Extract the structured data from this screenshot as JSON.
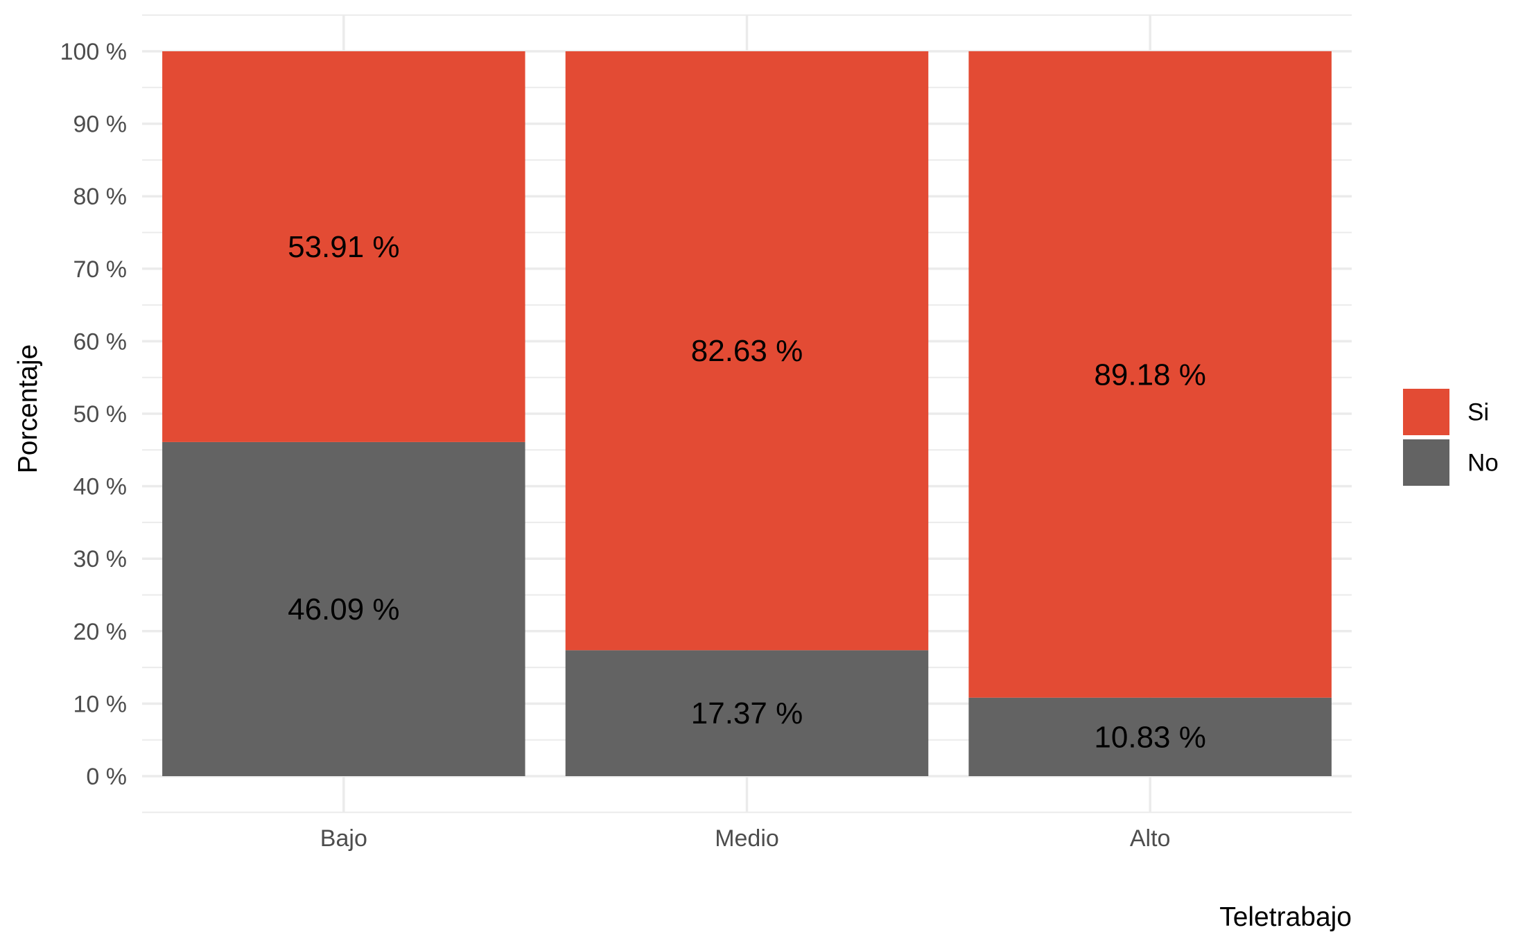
{
  "chart_data": {
    "type": "bar",
    "stacked": true,
    "title": "",
    "xlabel": "Teletrabajo",
    "ylabel": "Porcentaje",
    "categories": [
      "Bajo",
      "Medio",
      "Alto"
    ],
    "series": [
      {
        "name": "No",
        "color": "#636363",
        "values": [
          46.09,
          17.37,
          10.83
        ],
        "labels": [
          "46.09 %",
          "17.37 %",
          "10.83 %"
        ]
      },
      {
        "name": "Si",
        "color": "#E34B34",
        "values": [
          53.91,
          82.63,
          89.18
        ],
        "labels": [
          "53.91 %",
          "82.63 %",
          "89.18 %"
        ]
      }
    ],
    "ylim": [
      0,
      100
    ],
    "yticks": [
      0,
      10,
      20,
      30,
      40,
      50,
      60,
      70,
      80,
      90,
      100
    ],
    "ytick_labels": [
      "0 %",
      "10 %",
      "20 %",
      "30 %",
      "40 %",
      "50 %",
      "60 %",
      "70 %",
      "80 %",
      "90 %",
      "100 %"
    ],
    "grid": true,
    "legend": {
      "position": "right",
      "entries": [
        "Si",
        "No"
      ]
    }
  }
}
